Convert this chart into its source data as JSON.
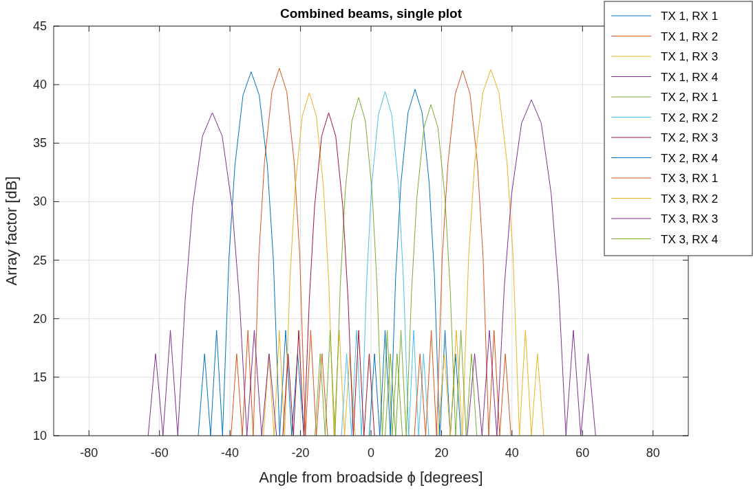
{
  "chart_data": {
    "type": "line",
    "title": "Combined beams, single plot",
    "xlabel": "Angle from broadside  ϕ [degrees]",
    "ylabel": "Array factor [dB]",
    "xlim": [
      -90,
      90
    ],
    "ylim": [
      10,
      45
    ],
    "xticks": [
      -80,
      -60,
      -40,
      -20,
      0,
      20,
      40,
      60,
      80
    ],
    "yticks": [
      10,
      15,
      20,
      25,
      30,
      35,
      40,
      45
    ],
    "grid": true,
    "legend": "top right",
    "marker": "none",
    "line_style": "solid",
    "series": [
      {
        "name": "TX 1, RX 1",
        "color": "#0072bd",
        "x": [
          -49,
          -47.2,
          -45.5,
          -43.8,
          -42.1,
          -40.3,
          -38.6,
          -36.3,
          -34,
          -31.7,
          -29.4,
          -27.7,
          -25.9,
          -24.2,
          -22.5,
          -20.8,
          -19
        ],
        "values": [
          10,
          17,
          10,
          19,
          10,
          25.1,
          33.1,
          39.1,
          41.1,
          39.1,
          33.1,
          25.1,
          10,
          19,
          10,
          17,
          10
        ]
      },
      {
        "name": "TX 1, RX 2",
        "color": "#d95319",
        "x": [
          -39.7,
          -38.1,
          -36.5,
          -34.9,
          -33.4,
          -31.8,
          -30.2,
          -28.1,
          -26,
          -23.9,
          -21.8,
          -20.2,
          -18.6,
          -17.1,
          -15.5,
          -13.9,
          -12.3
        ],
        "values": [
          10,
          17,
          10,
          19,
          10,
          25.4,
          33.4,
          39.4,
          41.4,
          39.4,
          33.4,
          25.4,
          10,
          19,
          10,
          17,
          10
        ]
      },
      {
        "name": "TX 1, RX 3",
        "color": "#edb120",
        "x": [
          -30.5,
          -29,
          -27.5,
          -26,
          -24.5,
          -23,
          -21.5,
          -19.5,
          -17.5,
          -15.5,
          -13.5,
          -12,
          -10.5,
          -9,
          -7.5,
          -6,
          -4.5
        ],
        "values": [
          10,
          17,
          10,
          19,
          10,
          23.3,
          31.3,
          37.3,
          39.3,
          37.3,
          31.3,
          23.3,
          10,
          19,
          10,
          17,
          10
        ]
      },
      {
        "name": "TX 1, RX 4",
        "color": "#7e2f8e",
        "x": [
          -63.2,
          -61.1,
          -59,
          -56.9,
          -54.8,
          -52.7,
          -50.6,
          -47.8,
          -45,
          -42.2,
          -39.4,
          -37.3,
          -35.2,
          -33.1,
          -31,
          -28.9,
          -26.8
        ],
        "values": [
          10,
          17,
          10,
          19,
          10,
          21.6,
          29.6,
          35.6,
          37.6,
          35.6,
          29.6,
          21.6,
          10,
          19,
          10,
          17,
          10
        ]
      },
      {
        "name": "TX 2, RX 1",
        "color": "#77ac30",
        "x": [
          -15.9,
          -14.4,
          -13,
          -11.6,
          -10.2,
          -8.7,
          -7.3,
          -5.4,
          -3.5,
          -1.6,
          0.3,
          1.7,
          3.2,
          4.6,
          6,
          7.4,
          8.9
        ],
        "values": [
          10,
          17,
          10,
          19,
          10,
          22.9,
          30.9,
          36.9,
          38.9,
          36.9,
          30.9,
          22.9,
          10,
          19,
          10,
          17,
          10
        ]
      },
      {
        "name": "TX 2, RX 2",
        "color": "#4dbeee",
        "x": [
          -8.4,
          -6.9,
          -5.5,
          -4.1,
          -2.7,
          -1.2,
          0.2,
          2.1,
          4,
          5.9,
          7.8,
          9.2,
          10.7,
          12.1,
          13.5,
          14.9,
          16.4
        ],
        "values": [
          10,
          17,
          10,
          19,
          10,
          23.4,
          31.4,
          37.4,
          39.4,
          37.4,
          31.4,
          23.4,
          10,
          19,
          10,
          17,
          10
        ]
      },
      {
        "name": "TX 2, RX 3",
        "color": "#a2142f",
        "x": [
          -25,
          -23.5,
          -22,
          -20.5,
          -19,
          -17.5,
          -16,
          -14,
          -12,
          -10,
          -8,
          -6.5,
          -5,
          -3.5,
          -2,
          -0.5,
          1
        ],
        "values": [
          10,
          17,
          10,
          19,
          10,
          21.6,
          29.6,
          35.6,
          37.6,
          35.6,
          29.6,
          21.6,
          10,
          19,
          10,
          17,
          10
        ]
      },
      {
        "name": "TX 2, RX 4",
        "color": "#0072bd",
        "x": [
          -0.5,
          1,
          2.5,
          4,
          5.5,
          7,
          8.5,
          10.5,
          12.5,
          14.5,
          16.5,
          18,
          19.5,
          21,
          22.5,
          24,
          25.5
        ],
        "values": [
          10,
          17,
          10,
          19,
          10,
          23.6,
          31.6,
          37.6,
          39.6,
          37.6,
          31.6,
          23.6,
          10,
          19,
          10,
          17,
          10
        ]
      },
      {
        "name": "TX 3, RX 1",
        "color": "#d95319",
        "x": [
          12.3,
          13.9,
          15.5,
          17.1,
          18.6,
          20.2,
          21.8,
          23.9,
          26,
          28.1,
          30.2,
          31.8,
          33.4,
          34.9,
          36.5,
          38.1,
          39.7
        ],
        "values": [
          10,
          17,
          10,
          19,
          10,
          25.2,
          33.2,
          39.2,
          41.2,
          39.2,
          33.2,
          25.2,
          10,
          19,
          10,
          17,
          10
        ]
      },
      {
        "name": "TX 3, RX 2",
        "color": "#edb120",
        "x": [
          19,
          20.8,
          22.5,
          24.2,
          25.9,
          27.7,
          29.4,
          31.7,
          34,
          36.3,
          38.6,
          40.3,
          42.1,
          43.8,
          45.5,
          47.2,
          49
        ],
        "values": [
          10,
          17,
          10,
          19,
          10,
          25.3,
          33.3,
          39.3,
          41.3,
          39.3,
          33.3,
          25.3,
          10,
          19,
          10,
          17,
          10
        ]
      },
      {
        "name": "TX 3, RX 3",
        "color": "#7e2f8e",
        "x": [
          27.3,
          29.4,
          31.5,
          33.6,
          35.7,
          37.8,
          39.9,
          42.7,
          45.5,
          48.3,
          51.1,
          53.2,
          55.3,
          57.4,
          59.5,
          61.6,
          63.7
        ],
        "values": [
          10,
          17,
          10,
          19,
          10,
          22.7,
          30.7,
          36.7,
          38.7,
          36.7,
          30.7,
          22.7,
          10,
          19,
          10,
          17,
          10
        ]
      },
      {
        "name": "TX 3, RX 4",
        "color": "#77ac30",
        "x": [
          4,
          5.5,
          7,
          8.5,
          10,
          11.5,
          13,
          15,
          17,
          19,
          21,
          22.5,
          24,
          25.5,
          27,
          28.5,
          30
        ],
        "values": [
          10,
          17,
          10,
          19,
          10,
          22.3,
          30.3,
          36.3,
          38.3,
          36.3,
          30.3,
          22.3,
          10,
          19,
          10,
          17,
          10
        ]
      }
    ]
  }
}
